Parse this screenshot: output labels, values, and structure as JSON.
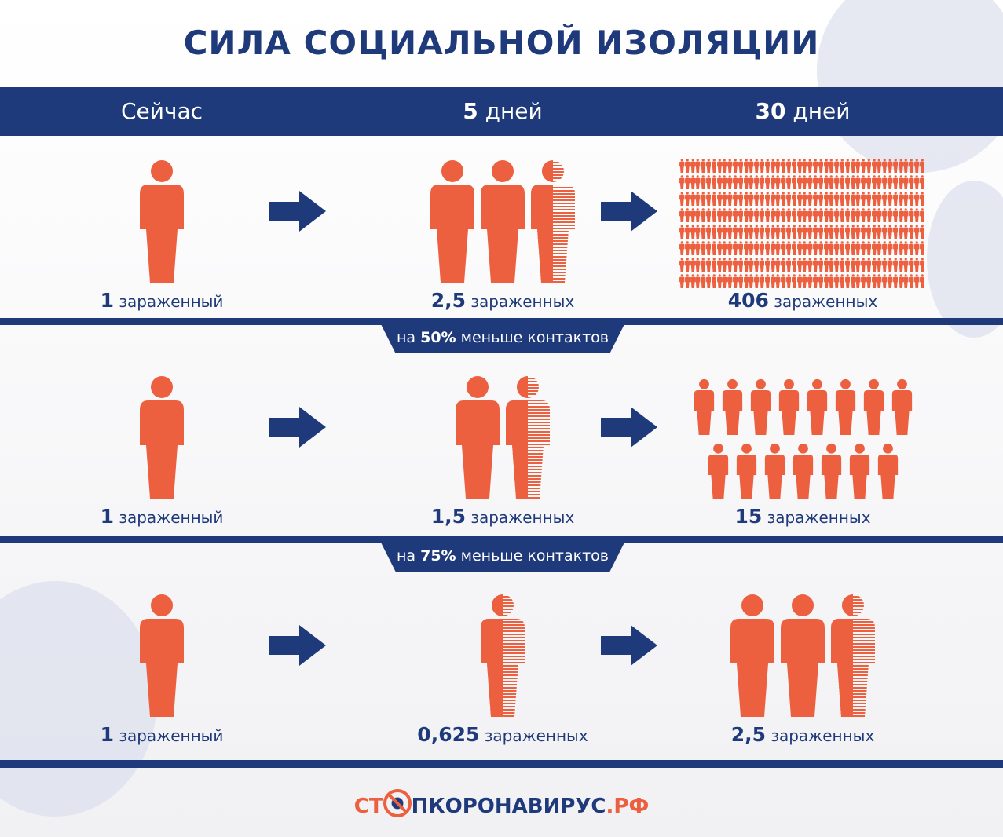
{
  "title": "СИЛА СОЦИАЛЬНОЙ ИЗОЛЯЦИИ",
  "header": {
    "now": "Сейчас",
    "day5_num": "5",
    "day5_unit": "дней",
    "day30_num": "30",
    "day30_unit": "дней"
  },
  "rows": [
    {
      "now": {
        "value": 1,
        "num": "1",
        "unit": "зараженный"
      },
      "d5": {
        "value": 2.5,
        "num": "2,5",
        "unit": "зараженных"
      },
      "d30": {
        "value": 406,
        "num": "406",
        "unit": "зараженных"
      }
    },
    {
      "tab_pre": "на",
      "tab_pct": "50%",
      "tab_post": "меньше контактов",
      "now": {
        "value": 1,
        "num": "1",
        "unit": "зараженный"
      },
      "d5": {
        "value": 1.5,
        "num": "1,5",
        "unit": "зараженных"
      },
      "d30": {
        "value": 15,
        "num": "15",
        "unit": "зараженных"
      }
    },
    {
      "tab_pre": "на",
      "tab_pct": "75%",
      "tab_post": "меньше контактов",
      "now": {
        "value": 1,
        "num": "1",
        "unit": "зараженный"
      },
      "d5": {
        "value": 0.625,
        "num": "0,625",
        "unit": "зараженных"
      },
      "d30": {
        "value": 2.5,
        "num": "2,5",
        "unit": "зараженных"
      }
    }
  ],
  "logo": {
    "part1": "СТ",
    "part2": "ПКОРОНАВИРУС",
    "part3": ".РФ"
  },
  "colors": {
    "navy": "#1f3a7a",
    "orange": "#ec5f3f",
    "bg_virus": "#dcdeec"
  }
}
